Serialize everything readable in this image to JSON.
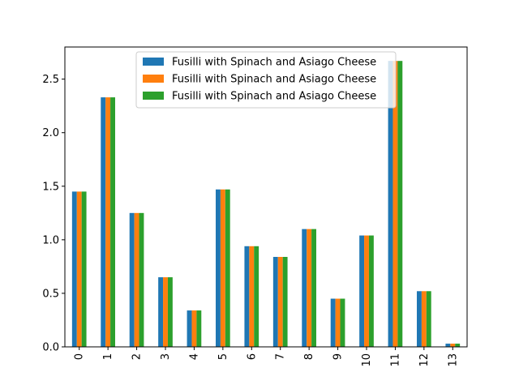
{
  "chart_data": {
    "type": "bar",
    "title": "",
    "xlabel": "",
    "ylabel": "",
    "categories": [
      "0",
      "1",
      "2",
      "3",
      "4",
      "5",
      "6",
      "7",
      "8",
      "9",
      "10",
      "11",
      "12",
      "13"
    ],
    "series": [
      {
        "name": "Fusilli with Spinach and Asiago Cheese",
        "color": "#1f77b4",
        "values": [
          1.45,
          2.33,
          1.25,
          0.65,
          0.34,
          1.47,
          0.94,
          0.84,
          1.1,
          0.45,
          1.04,
          2.67,
          0.52,
          0.03
        ]
      },
      {
        "name": "Fusilli with Spinach and Asiago Cheese",
        "color": "#ff7f0e",
        "values": [
          1.45,
          2.33,
          1.25,
          0.65,
          0.34,
          1.47,
          0.94,
          0.84,
          1.1,
          0.45,
          1.04,
          2.67,
          0.52,
          0.03
        ]
      },
      {
        "name": "Fusilli with Spinach and Asiago Cheese",
        "color": "#2ca02c",
        "values": [
          1.45,
          2.33,
          1.25,
          0.65,
          0.34,
          1.47,
          0.94,
          0.84,
          1.1,
          0.45,
          1.04,
          2.67,
          0.52,
          0.03
        ]
      }
    ],
    "ylim": [
      0,
      2.8
    ],
    "yticks": [
      "0.0",
      "0.5",
      "1.0",
      "1.5",
      "2.0",
      "2.5"
    ],
    "grid": false,
    "legend_position": "top-center",
    "xtick_rotation": "vertical"
  }
}
